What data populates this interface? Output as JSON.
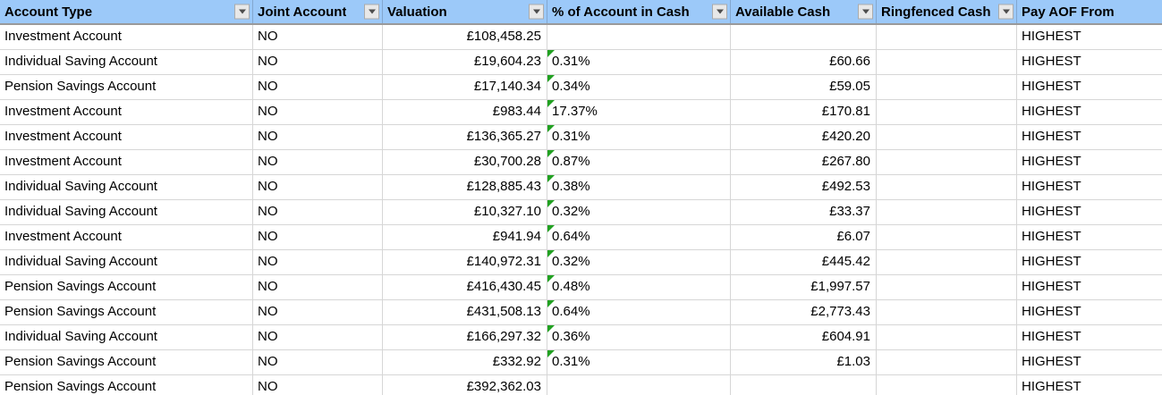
{
  "colors": {
    "header_bg": "#9CC9F9",
    "header_border_bottom": "#9A9A9A",
    "gridline": "#D6D6D6",
    "error_indicator_green": "#21A121",
    "filter_button_bg": "#E8E8E8",
    "filter_button_border": "#ABABAB"
  },
  "table": {
    "columns": [
      {
        "label": "Account Type",
        "has_filter": true,
        "align": "left"
      },
      {
        "label": "Joint Account",
        "has_filter": true,
        "align": "left"
      },
      {
        "label": "Valuation",
        "has_filter": true,
        "align": "left"
      },
      {
        "label": "% of Account in Cash",
        "has_filter": true,
        "align": "left"
      },
      {
        "label": "Available Cash",
        "has_filter": true,
        "align": "left"
      },
      {
        "label": "Ringfenced Cash",
        "has_filter": true,
        "align": "left"
      },
      {
        "label": "Pay AOF From",
        "has_filter": false,
        "align": "left"
      }
    ],
    "filter_icon": "chevron-down-icon",
    "error_indicator_icon": "green-corner-triangle-icon",
    "row_fields": [
      "account_type",
      "joint_account",
      "valuation",
      "pct_of_account_in_cash",
      "available_cash",
      "ringfenced_cash",
      "pay_aof_from"
    ],
    "rows": [
      {
        "account_type": "Investment Account",
        "joint_account": "NO",
        "valuation": "£108,458.25",
        "pct_of_account_in_cash": "",
        "available_cash": "",
        "ringfenced_cash": "",
        "pay_aof_from": "HIGHEST"
      },
      {
        "account_type": "Individual Saving Account",
        "joint_account": "NO",
        "valuation": "£19,604.23",
        "pct_of_account_in_cash": "0.31%",
        "available_cash": "£60.66",
        "ringfenced_cash": "",
        "pay_aof_from": "HIGHEST"
      },
      {
        "account_type": "Pension Savings Account",
        "joint_account": "NO",
        "valuation": "£17,140.34",
        "pct_of_account_in_cash": "0.34%",
        "available_cash": "£59.05",
        "ringfenced_cash": "",
        "pay_aof_from": "HIGHEST"
      },
      {
        "account_type": "Investment Account",
        "joint_account": "NO",
        "valuation": "£983.44",
        "pct_of_account_in_cash": "17.37%",
        "available_cash": "£170.81",
        "ringfenced_cash": "",
        "pay_aof_from": "HIGHEST"
      },
      {
        "account_type": "Investment Account",
        "joint_account": "NO",
        "valuation": "£136,365.27",
        "pct_of_account_in_cash": "0.31%",
        "available_cash": "£420.20",
        "ringfenced_cash": "",
        "pay_aof_from": "HIGHEST"
      },
      {
        "account_type": "Investment Account",
        "joint_account": "NO",
        "valuation": "£30,700.28",
        "pct_of_account_in_cash": "0.87%",
        "available_cash": "£267.80",
        "ringfenced_cash": "",
        "pay_aof_from": "HIGHEST"
      },
      {
        "account_type": "Individual Saving Account",
        "joint_account": "NO",
        "valuation": "£128,885.43",
        "pct_of_account_in_cash": "0.38%",
        "available_cash": "£492.53",
        "ringfenced_cash": "",
        "pay_aof_from": "HIGHEST"
      },
      {
        "account_type": "Individual Saving Account",
        "joint_account": "NO",
        "valuation": "£10,327.10",
        "pct_of_account_in_cash": "0.32%",
        "available_cash": "£33.37",
        "ringfenced_cash": "",
        "pay_aof_from": "HIGHEST"
      },
      {
        "account_type": "Investment Account",
        "joint_account": "NO",
        "valuation": "£941.94",
        "pct_of_account_in_cash": "0.64%",
        "available_cash": "£6.07",
        "ringfenced_cash": "",
        "pay_aof_from": "HIGHEST"
      },
      {
        "account_type": "Individual Saving Account",
        "joint_account": "NO",
        "valuation": "£140,972.31",
        "pct_of_account_in_cash": "0.32%",
        "available_cash": "£445.42",
        "ringfenced_cash": "",
        "pay_aof_from": "HIGHEST"
      },
      {
        "account_type": "Pension Savings Account",
        "joint_account": "NO",
        "valuation": "£416,430.45",
        "pct_of_account_in_cash": "0.48%",
        "available_cash": "£1,997.57",
        "ringfenced_cash": "",
        "pay_aof_from": "HIGHEST"
      },
      {
        "account_type": "Pension Savings Account",
        "joint_account": "NO",
        "valuation": "£431,508.13",
        "pct_of_account_in_cash": "0.64%",
        "available_cash": "£2,773.43",
        "ringfenced_cash": "",
        "pay_aof_from": "HIGHEST"
      },
      {
        "account_type": "Individual Saving Account",
        "joint_account": "NO",
        "valuation": "£166,297.32",
        "pct_of_account_in_cash": "0.36%",
        "available_cash": "£604.91",
        "ringfenced_cash": "",
        "pay_aof_from": "HIGHEST"
      },
      {
        "account_type": "Pension Savings Account",
        "joint_account": "NO",
        "valuation": "£332.92",
        "pct_of_account_in_cash": "0.31%",
        "available_cash": "£1.03",
        "ringfenced_cash": "",
        "pay_aof_from": "HIGHEST"
      },
      {
        "account_type": "Pension Savings Account",
        "joint_account": "NO",
        "valuation": "£392,362.03",
        "pct_of_account_in_cash": "",
        "available_cash": "",
        "ringfenced_cash": "",
        "pay_aof_from": "HIGHEST"
      }
    ]
  }
}
